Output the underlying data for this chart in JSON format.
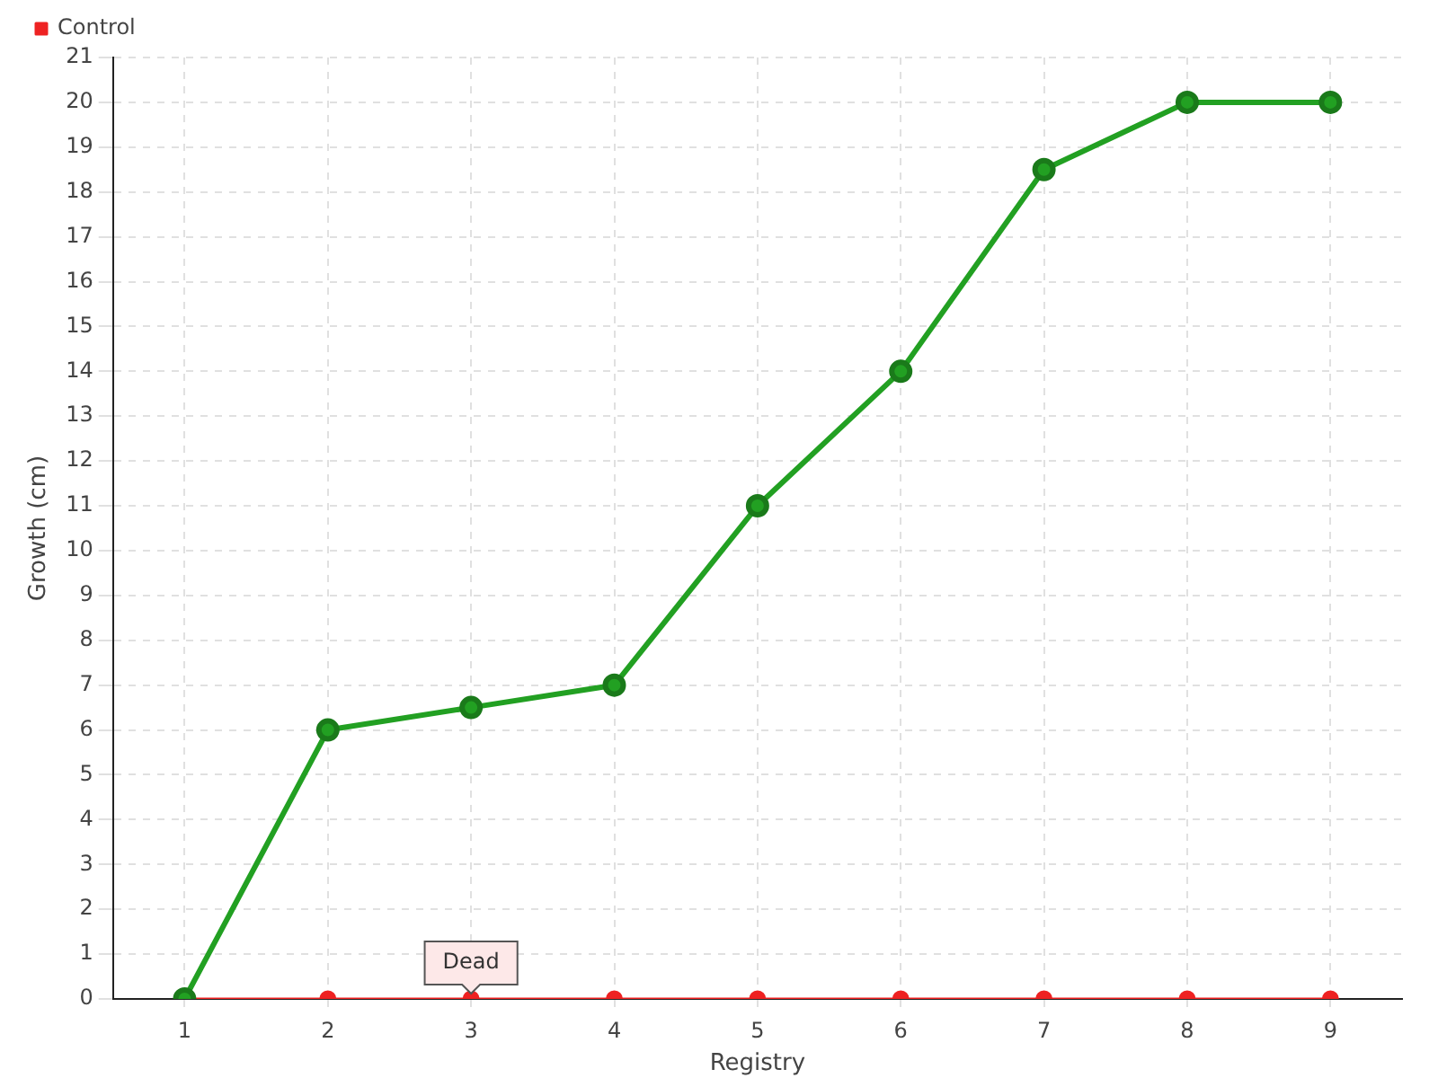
{
  "chart_data": {
    "type": "line",
    "xlabel": "Registry",
    "ylabel": "Growth (cm)",
    "categories": [
      "1",
      "2",
      "3",
      "4",
      "5",
      "6",
      "7",
      "8",
      "9"
    ],
    "series": [
      {
        "color": "#22a022",
        "values": [
          0,
          6,
          6.5,
          7,
          11,
          14,
          18.5,
          20,
          20
        ]
      },
      {
        "name": "Control",
        "color": "#ee2222",
        "values": [
          0,
          0,
          0,
          0,
          0,
          0,
          0,
          0,
          0
        ]
      }
    ],
    "ylim": [
      0,
      21
    ],
    "yticks": [
      0,
      1,
      2,
      3,
      4,
      5,
      6,
      7,
      8,
      9,
      10,
      11,
      12,
      13,
      14,
      15,
      16,
      17,
      18,
      19,
      20,
      21
    ],
    "grid": true,
    "legend": "top left",
    "marker": "circle",
    "line_style": "solid",
    "annotations": [
      {
        "text": "Dead",
        "x": "3",
        "y": 0
      }
    ]
  }
}
